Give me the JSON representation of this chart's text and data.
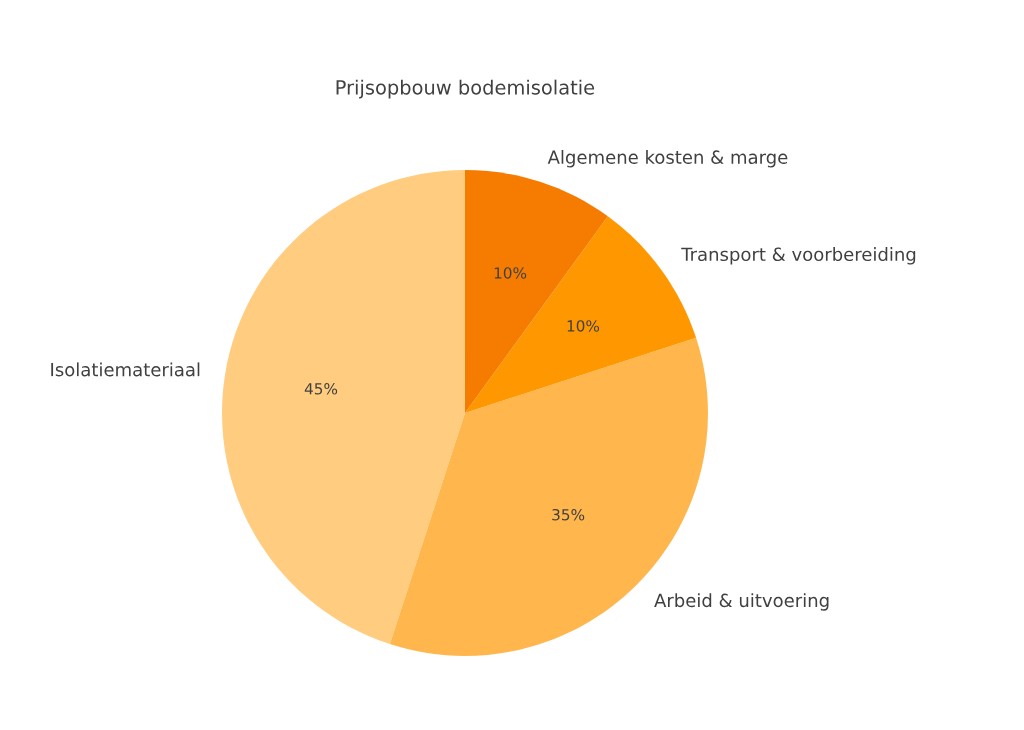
{
  "chart_data": {
    "type": "pie",
    "title": "Prijsopbouw bodemisolatie",
    "categories": [
      "Isolatiemateriaal",
      "Arbeid & uitvoering",
      "Transport & voorbereiding",
      "Algemene kosten & marge"
    ],
    "values": [
      45,
      35,
      10,
      10
    ],
    "colors": [
      "#ffcc80",
      "#ffb74d",
      "#ff9800",
      "#f57c00"
    ],
    "value_labels": [
      "45%",
      "35%",
      "10%",
      "10%"
    ],
    "legend": false
  }
}
